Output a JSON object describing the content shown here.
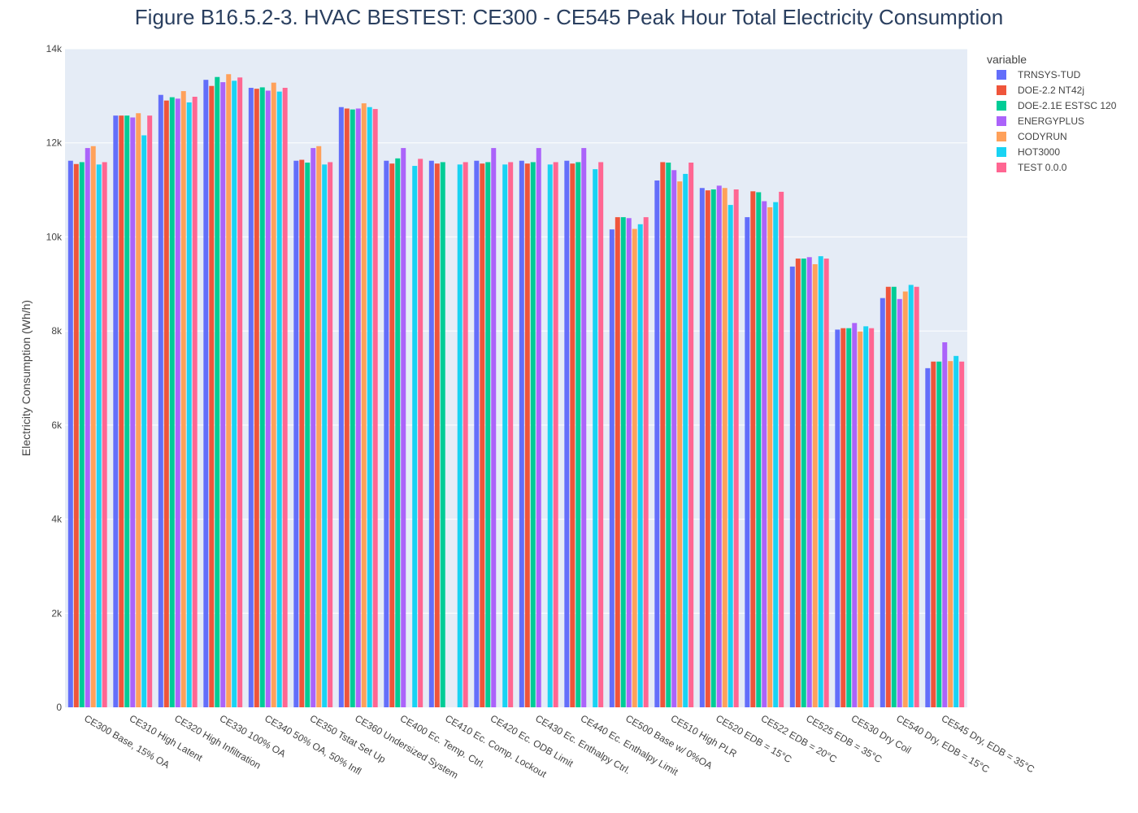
{
  "chart_data": {
    "type": "bar",
    "title": "Figure B16.5.2-3. HVAC BESTEST: CE300 - CE545 Peak Hour Total Electricity Consumption",
    "ylabel": "Electricity Consumption (Wh/h)",
    "xlabel": "",
    "ylim": [
      0,
      14000
    ],
    "y_ticks": [
      0,
      2000,
      4000,
      6000,
      8000,
      10000,
      12000,
      14000
    ],
    "y_tick_labels": [
      "0",
      "2k",
      "4k",
      "6k",
      "8k",
      "10k",
      "12k",
      "14k"
    ],
    "grid": true,
    "legend_title": "variable",
    "legend_position": "top-right",
    "categories": [
      "CE300 Base, 15% OA",
      "CE310 High Latent",
      "CE320 High Infiltration",
      "CE330 100% OA",
      "CE340 50% OA, 50% Infl",
      "CE350 Tstat Set Up",
      "CE360 Undersized System",
      "CE400 Ec. Temp. Ctrl.",
      "CE410 Ec. Comp. Lockout",
      "CE420 Ec. ODB Limit",
      "CE430 Ec. Enthalpy Ctrl.",
      "CE440 Ec. Enthalpy Limit",
      "CE500 Base w/ 0%OA",
      "CE510 High PLR",
      "CE520 EDB = 15°C",
      "CE522 EDB = 20°C",
      "CE525 EDB = 35°C",
      "CE530 Dry Coil",
      "CE540 Dry, EDB = 15°C",
      "CE545 Dry, EDB = 35°C"
    ],
    "series": [
      {
        "name": "TRNSYS-TUD",
        "color": "#636efa",
        "values": [
          11620,
          12580,
          13020,
          13340,
          13170,
          11620,
          12760,
          11620,
          11620,
          11620,
          11620,
          11620,
          10160,
          11200,
          11040,
          10420,
          9370,
          8030,
          8700,
          7210
        ]
      },
      {
        "name": "DOE-2.2 NT42j",
        "color": "#ef553b",
        "values": [
          11550,
          12580,
          12900,
          13210,
          13150,
          11640,
          12730,
          11560,
          11560,
          11560,
          11560,
          11560,
          10420,
          11590,
          10990,
          10970,
          9540,
          8060,
          8940,
          7350
        ]
      },
      {
        "name": "DOE-2.1E ESTSC 120",
        "color": "#00cc96",
        "values": [
          11590,
          12580,
          12970,
          13400,
          13180,
          11580,
          12710,
          11670,
          11590,
          11590,
          11590,
          11590,
          10420,
          11580,
          11010,
          10950,
          9540,
          8060,
          8940,
          7350
        ]
      },
      {
        "name": "ENERGYPLUS",
        "color": "#ab63fa",
        "values": [
          11890,
          12540,
          12940,
          13290,
          13110,
          11890,
          12730,
          11890,
          0,
          11890,
          11890,
          11890,
          10400,
          11420,
          11090,
          10760,
          9570,
          8170,
          8680,
          7760
        ]
      },
      {
        "name": "CODYRUN",
        "color": "#ffa15a",
        "values": [
          11930,
          12630,
          13100,
          13460,
          13280,
          11930,
          12840,
          0,
          0,
          0,
          0,
          0,
          10170,
          11180,
          11040,
          10630,
          9420,
          7990,
          8840,
          7360
        ]
      },
      {
        "name": "HOT3000",
        "color": "#19d3f3",
        "values": [
          11540,
          12160,
          12860,
          13320,
          13090,
          11540,
          12760,
          11510,
          11540,
          11540,
          11540,
          11440,
          10270,
          11340,
          10680,
          10740,
          9590,
          8100,
          8980,
          7470
        ]
      },
      {
        "name": "TEST 0.0.0",
        "color": "#ff6692",
        "values": [
          11590,
          12580,
          12980,
          13390,
          13170,
          11590,
          12720,
          11660,
          11590,
          11590,
          11590,
          11590,
          10420,
          11580,
          11010,
          10960,
          9540,
          8060,
          8940,
          7350
        ]
      }
    ]
  }
}
